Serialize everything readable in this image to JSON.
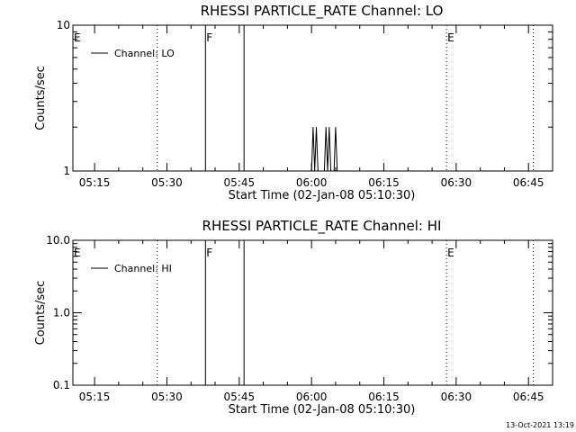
{
  "chart_data": [
    {
      "type": "line",
      "title": "RHESSI PARTICLE_RATE Channel: LO",
      "xlabel": "Start Time (02-Jan-08 05:10:30)",
      "ylabel": "Counts/sec",
      "y_scale": "log",
      "ylim": [
        1,
        10
      ],
      "y_ticks": [
        "1",
        "10"
      ],
      "xlim": [
        "05:10:30",
        "06:50:00"
      ],
      "x_ticks": [
        "05:15",
        "05:30",
        "05:45",
        "06:00",
        "06:15",
        "06:30",
        "06:45"
      ],
      "legend": {
        "label": "Channel: LO",
        "placement": "top-left"
      },
      "event_markers": [
        {
          "time": "05:28",
          "style": "dotted",
          "label": ""
        },
        {
          "time": "05:38",
          "style": "solid",
          "label": "F"
        },
        {
          "time": "05:46",
          "style": "solid",
          "label": ""
        },
        {
          "time": "06:28",
          "style": "dotted",
          "label": "E"
        },
        {
          "time": "06:46",
          "style": "dotted",
          "label": ""
        }
      ],
      "start_marker_label": "E",
      "series": [
        {
          "name": "Channel: LO",
          "points": [
            [
              "06:00:00",
              1
            ],
            [
              "06:00:20",
              2
            ],
            [
              "06:00:40",
              1
            ],
            [
              "06:01:00",
              2
            ],
            [
              "06:01:20",
              1
            ],
            [
              "06:02:40",
              1
            ],
            [
              "06:03:00",
              2
            ],
            [
              "06:03:20",
              1
            ],
            [
              "06:03:40",
              2
            ],
            [
              "06:04:00",
              1
            ],
            [
              "06:04:40",
              1
            ],
            [
              "06:05:00",
              2
            ],
            [
              "06:05:20",
              1
            ]
          ]
        }
      ]
    },
    {
      "type": "line",
      "title": "RHESSI PARTICLE_RATE Channel: HI",
      "xlabel": "Start Time (02-Jan-08 05:10:30)",
      "ylabel": "Counts/sec",
      "y_scale": "log",
      "ylim": [
        0.1,
        10
      ],
      "y_ticks": [
        "0.1",
        "1.0",
        "10.0"
      ],
      "xlim": [
        "05:10:30",
        "06:50:00"
      ],
      "x_ticks": [
        "05:15",
        "05:30",
        "05:45",
        "06:00",
        "06:15",
        "06:30",
        "06:45"
      ],
      "legend": {
        "label": "Channel: HI",
        "placement": "top-left"
      },
      "event_markers": [
        {
          "time": "05:28",
          "style": "dotted",
          "label": ""
        },
        {
          "time": "05:38",
          "style": "solid",
          "label": "F"
        },
        {
          "time": "05:46",
          "style": "solid",
          "label": ""
        },
        {
          "time": "06:28",
          "style": "dotted",
          "label": "E"
        },
        {
          "time": "06:46",
          "style": "dotted",
          "label": ""
        }
      ],
      "start_marker_label": "E",
      "series": [
        {
          "name": "Channel: HI",
          "points": []
        }
      ]
    }
  ],
  "footer": {
    "timestamp": "13-Oct-2021 13:19"
  }
}
